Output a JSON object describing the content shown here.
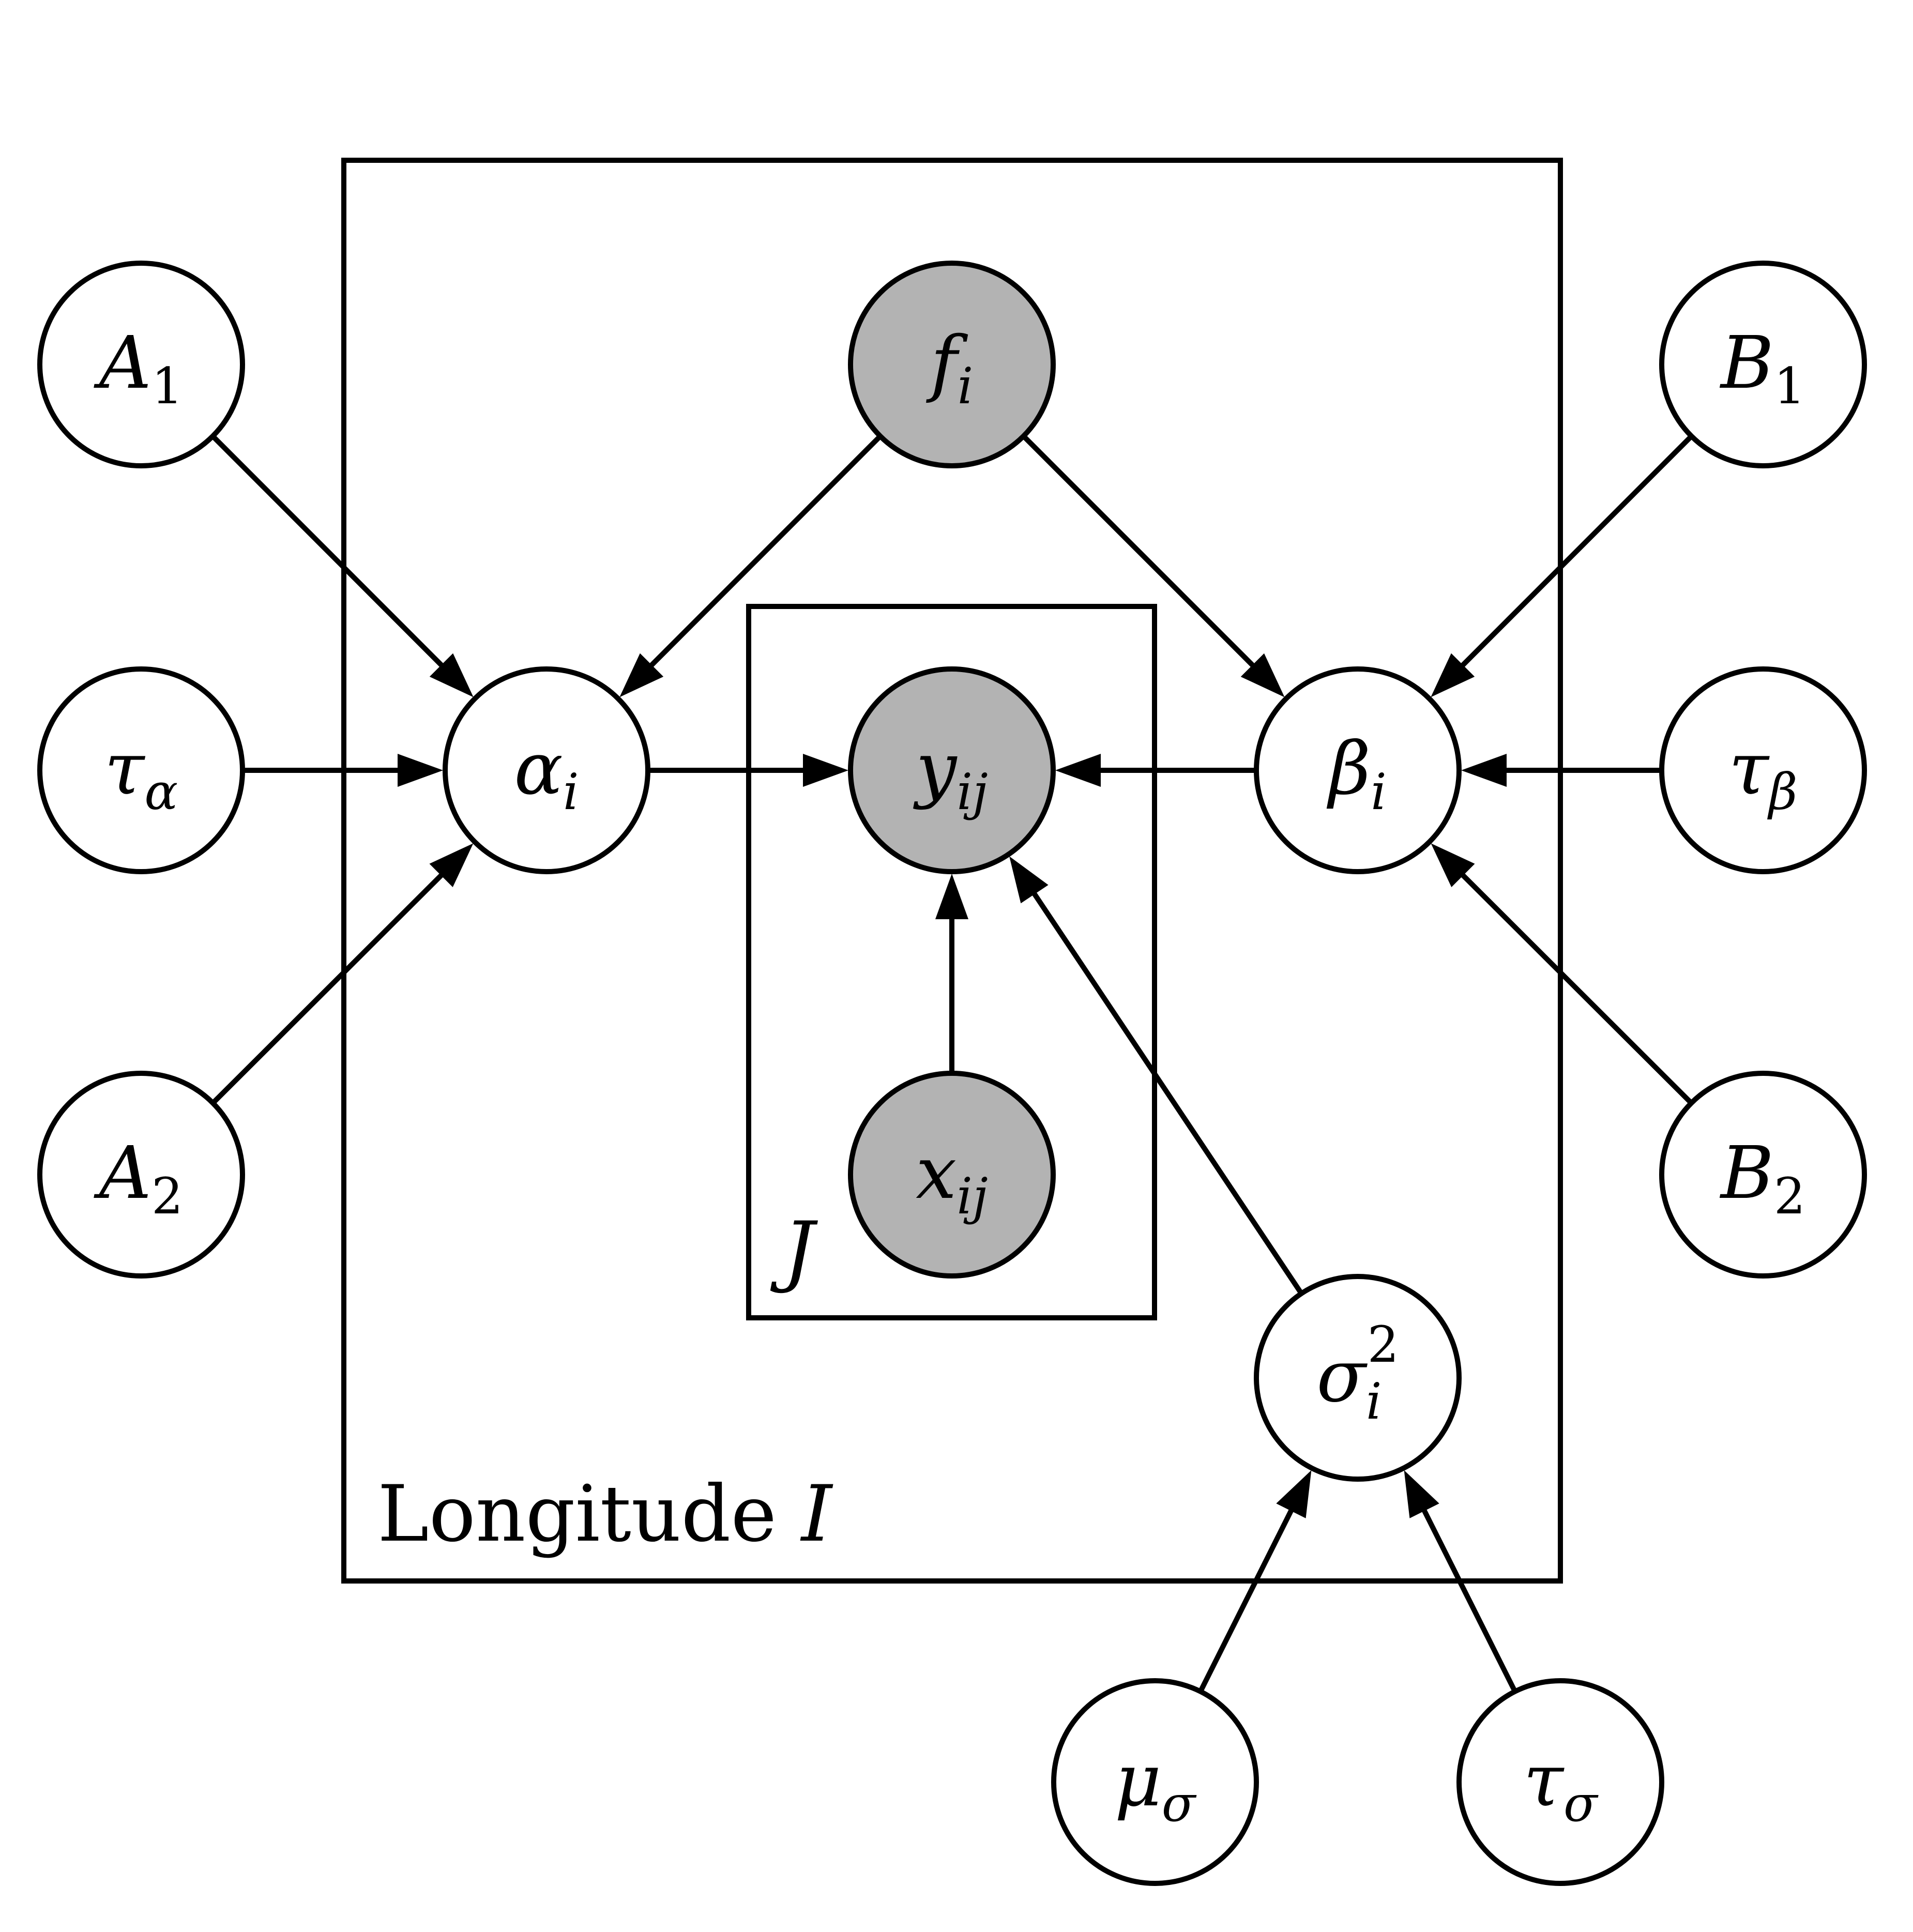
{
  "colors": {
    "observed_fill": "#b3b3b3",
    "latent_fill": "#ffffff",
    "stroke": "#000000",
    "background": "#ffffff"
  },
  "plates": {
    "outer": {
      "label_text": "Longitude ",
      "label_var": "I"
    },
    "inner": {
      "label_var": "J"
    }
  },
  "nodes": {
    "A1": {
      "base": "A",
      "sub": "1",
      "sup": "",
      "observed": false
    },
    "tau_a": {
      "base": "τ",
      "sub": "α",
      "sup": "",
      "observed": false
    },
    "A2": {
      "base": "A",
      "sub": "2",
      "sup": "",
      "observed": false
    },
    "f": {
      "base": "f",
      "sub": "i",
      "sup": "",
      "observed": true
    },
    "alpha": {
      "base": "α",
      "sub": "i",
      "sup": "",
      "observed": false
    },
    "y": {
      "base": "y",
      "sub": "ij",
      "sup": "",
      "observed": true
    },
    "x": {
      "base": "x",
      "sub": "ij",
      "sup": "",
      "observed": true
    },
    "beta": {
      "base": "β",
      "sub": "i",
      "sup": "",
      "observed": false
    },
    "B1": {
      "base": "B",
      "sub": "1",
      "sup": "",
      "observed": false
    },
    "tau_b": {
      "base": "τ",
      "sub": "β",
      "sup": "",
      "observed": false
    },
    "B2": {
      "base": "B",
      "sub": "2",
      "sup": "",
      "observed": false
    },
    "sigma2": {
      "base": "σ",
      "sub": "i",
      "sup": "2",
      "observed": false
    },
    "mu_s": {
      "base": "μ",
      "sub": "σ",
      "sup": "",
      "observed": false
    },
    "tau_s": {
      "base": "τ",
      "sub": "σ",
      "sup": "",
      "observed": false
    }
  },
  "edges": [
    [
      "A1",
      "alpha"
    ],
    [
      "tau_a",
      "alpha"
    ],
    [
      "A2",
      "alpha"
    ],
    [
      "f",
      "alpha"
    ],
    [
      "f",
      "beta"
    ],
    [
      "alpha",
      "y"
    ],
    [
      "beta",
      "y"
    ],
    [
      "x",
      "y"
    ],
    [
      "sigma2",
      "y"
    ],
    [
      "B1",
      "beta"
    ],
    [
      "tau_b",
      "beta"
    ],
    [
      "B2",
      "beta"
    ],
    [
      "mu_s",
      "sigma2"
    ],
    [
      "tau_s",
      "sigma2"
    ]
  ]
}
